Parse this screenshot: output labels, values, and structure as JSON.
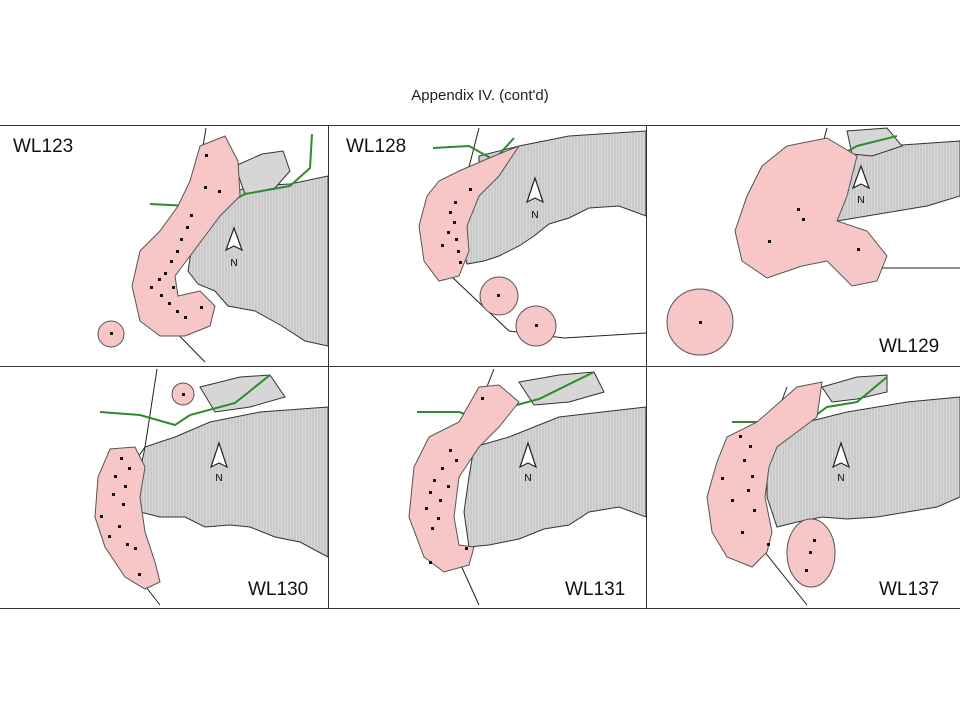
{
  "header": {
    "title": "Appendix IV.  (cont'd)"
  },
  "panels": [
    {
      "id": "WL123",
      "label": "WL123"
    },
    {
      "id": "WL128",
      "label": "WL128"
    },
    {
      "id": "WL129",
      "label": "WL129"
    },
    {
      "id": "WL130",
      "label": "WL130"
    },
    {
      "id": "WL131",
      "label": "WL131"
    },
    {
      "id": "WL137",
      "label": "WL137"
    }
  ],
  "north_arrow_label": "N",
  "colors": {
    "home_range_fill": "#f7c6c6",
    "home_range_stroke": "#555555",
    "land_fill": "#d6d6d6",
    "road_green": "#2e8b2e",
    "location_point": "#111111"
  }
}
